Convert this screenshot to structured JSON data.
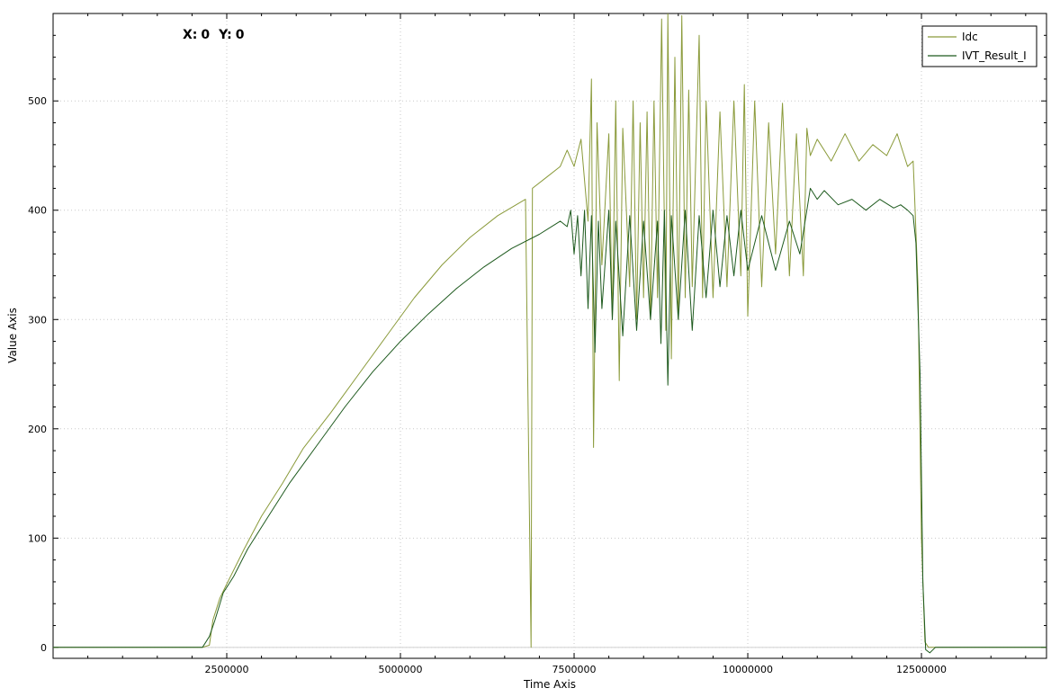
{
  "readout": {
    "x_label": "X:",
    "x_value": "0",
    "y_label": "Y:",
    "y_value": "0"
  },
  "chart_data": {
    "type": "line",
    "xlabel": "Time Axis",
    "ylabel": "Value Axis",
    "xlim": [
      0,
      14300000
    ],
    "ylim": [
      -10,
      580
    ],
    "xticks": [
      2500000,
      5000000,
      7500000,
      10000000,
      12500000
    ],
    "yticks": [
      0,
      100,
      200,
      300,
      400,
      500
    ],
    "grid": true,
    "legend_position": "top-right",
    "series": [
      {
        "name": "Idc",
        "color": "#8a9a3a",
        "points": [
          [
            0,
            0
          ],
          [
            2150000,
            0
          ],
          [
            2250000,
            2
          ],
          [
            2300000,
            25
          ],
          [
            2400000,
            45
          ],
          [
            2500000,
            58
          ],
          [
            2750000,
            90
          ],
          [
            3000000,
            120
          ],
          [
            3300000,
            150
          ],
          [
            3600000,
            182
          ],
          [
            4000000,
            215
          ],
          [
            4400000,
            250
          ],
          [
            4800000,
            285
          ],
          [
            5200000,
            320
          ],
          [
            5600000,
            350
          ],
          [
            6000000,
            375
          ],
          [
            6400000,
            395
          ],
          [
            6800000,
            410
          ],
          [
            6880000,
            0
          ],
          [
            6900000,
            420
          ],
          [
            7100000,
            430
          ],
          [
            7300000,
            440
          ],
          [
            7400000,
            455
          ],
          [
            7500000,
            440
          ],
          [
            7600000,
            465
          ],
          [
            7700000,
            390
          ],
          [
            7750000,
            520
          ],
          [
            7780000,
            183
          ],
          [
            7830000,
            480
          ],
          [
            7900000,
            350
          ],
          [
            8000000,
            470
          ],
          [
            8050000,
            300
          ],
          [
            8100000,
            500
          ],
          [
            8150000,
            244
          ],
          [
            8200000,
            475
          ],
          [
            8300000,
            330
          ],
          [
            8350000,
            500
          ],
          [
            8400000,
            300
          ],
          [
            8450000,
            480
          ],
          [
            8500000,
            320
          ],
          [
            8550000,
            490
          ],
          [
            8600000,
            300
          ],
          [
            8650000,
            500
          ],
          [
            8700000,
            320
          ],
          [
            8760000,
            575
          ],
          [
            8820000,
            290
          ],
          [
            8850000,
            580
          ],
          [
            8900000,
            264
          ],
          [
            8950000,
            540
          ],
          [
            9000000,
            300
          ],
          [
            9050000,
            578
          ],
          [
            9100000,
            320
          ],
          [
            9150000,
            510
          ],
          [
            9200000,
            330
          ],
          [
            9300000,
            560
          ],
          [
            9350000,
            320
          ],
          [
            9400000,
            500
          ],
          [
            9500000,
            320
          ],
          [
            9600000,
            490
          ],
          [
            9700000,
            330
          ],
          [
            9800000,
            500
          ],
          [
            9900000,
            340
          ],
          [
            9950000,
            515
          ],
          [
            10000000,
            303
          ],
          [
            10100000,
            500
          ],
          [
            10200000,
            330
          ],
          [
            10300000,
            480
          ],
          [
            10400000,
            360
          ],
          [
            10500000,
            498
          ],
          [
            10600000,
            340
          ],
          [
            10700000,
            470
          ],
          [
            10800000,
            340
          ],
          [
            10850000,
            475
          ],
          [
            10900000,
            450
          ],
          [
            11000000,
            465
          ],
          [
            11200000,
            445
          ],
          [
            11400000,
            470
          ],
          [
            11600000,
            445
          ],
          [
            11800000,
            460
          ],
          [
            12000000,
            450
          ],
          [
            12150000,
            470
          ],
          [
            12300000,
            440
          ],
          [
            12380000,
            445
          ],
          [
            12400000,
            415
          ],
          [
            12450000,
            330
          ],
          [
            12500000,
            100
          ],
          [
            12550000,
            5
          ],
          [
            12600000,
            0
          ],
          [
            14300000,
            0
          ]
        ]
      },
      {
        "name": "IVT_Result_I",
        "color": "#1e5a1e",
        "points": [
          [
            0,
            0
          ],
          [
            2150000,
            0
          ],
          [
            2250000,
            10
          ],
          [
            2330000,
            25
          ],
          [
            2450000,
            50
          ],
          [
            2600000,
            65
          ],
          [
            2800000,
            90
          ],
          [
            3100000,
            120
          ],
          [
            3400000,
            150
          ],
          [
            3800000,
            185
          ],
          [
            4200000,
            220
          ],
          [
            4600000,
            252
          ],
          [
            5000000,
            280
          ],
          [
            5400000,
            305
          ],
          [
            5800000,
            328
          ],
          [
            6200000,
            348
          ],
          [
            6600000,
            365
          ],
          [
            7000000,
            378
          ],
          [
            7300000,
            390
          ],
          [
            7400000,
            385
          ],
          [
            7450000,
            400
          ],
          [
            7500000,
            360
          ],
          [
            7550000,
            395
          ],
          [
            7600000,
            340
          ],
          [
            7650000,
            400
          ],
          [
            7700000,
            310
          ],
          [
            7750000,
            395
          ],
          [
            7800000,
            270
          ],
          [
            7850000,
            390
          ],
          [
            7900000,
            310
          ],
          [
            8000000,
            400
          ],
          [
            8050000,
            300
          ],
          [
            8100000,
            390
          ],
          [
            8200000,
            285
          ],
          [
            8300000,
            395
          ],
          [
            8400000,
            290
          ],
          [
            8500000,
            390
          ],
          [
            8600000,
            300
          ],
          [
            8700000,
            390
          ],
          [
            8750000,
            278
          ],
          [
            8800000,
            400
          ],
          [
            8850000,
            240
          ],
          [
            8900000,
            395
          ],
          [
            9000000,
            300
          ],
          [
            9100000,
            400
          ],
          [
            9200000,
            290
          ],
          [
            9300000,
            395
          ],
          [
            9400000,
            320
          ],
          [
            9500000,
            400
          ],
          [
            9600000,
            330
          ],
          [
            9700000,
            395
          ],
          [
            9800000,
            340
          ],
          [
            9900000,
            400
          ],
          [
            10000000,
            345
          ],
          [
            10200000,
            395
          ],
          [
            10400000,
            345
          ],
          [
            10600000,
            390
          ],
          [
            10750000,
            360
          ],
          [
            10850000,
            400
          ],
          [
            10900000,
            420
          ],
          [
            11000000,
            410
          ],
          [
            11100000,
            418
          ],
          [
            11300000,
            405
          ],
          [
            11500000,
            410
          ],
          [
            11700000,
            400
          ],
          [
            11900000,
            410
          ],
          [
            12100000,
            402
          ],
          [
            12200000,
            405
          ],
          [
            12300000,
            400
          ],
          [
            12380000,
            395
          ],
          [
            12420000,
            370
          ],
          [
            12480000,
            250
          ],
          [
            12520000,
            60
          ],
          [
            12560000,
            -2
          ],
          [
            12620000,
            -5
          ],
          [
            12700000,
            0
          ],
          [
            14300000,
            0
          ]
        ]
      }
    ]
  }
}
